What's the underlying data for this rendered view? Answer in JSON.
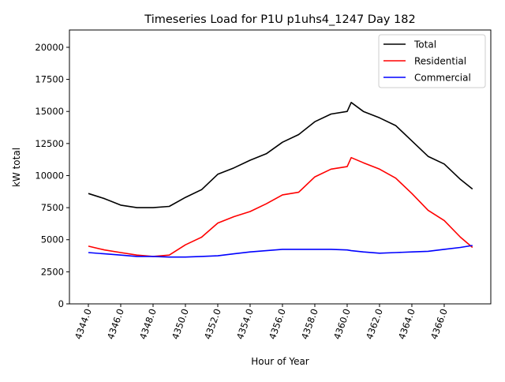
{
  "chart_data": {
    "type": "line",
    "title": "Timeseries Load for P1U p1uhs4_1247  Day 182",
    "xlabel": "Hour of Year",
    "ylabel": "kW total",
    "xlim": [
      4342.83,
      4368.88
    ],
    "ylim": [
      0,
      21350
    ],
    "xticks": [
      4344,
      4346,
      4348,
      4350,
      4352,
      4354,
      4356,
      4358,
      4360,
      4362,
      4364,
      4366
    ],
    "xtick_labels": [
      "4344.0",
      "4346.0",
      "4348.0",
      "4350.0",
      "4352.0",
      "4354.0",
      "4356.0",
      "4358.0",
      "4360.0",
      "4362.0",
      "4364.0",
      "4366.0"
    ],
    "yticks": [
      0,
      2500,
      5000,
      7500,
      10000,
      12500,
      15000,
      17500,
      20000
    ],
    "ytick_labels": [
      "0",
      "2500",
      "5000",
      "7500",
      "10000",
      "12500",
      "15000",
      "17500",
      "20000"
    ],
    "grid": false,
    "legend_position": "top-right",
    "x": [
      4344,
      4345,
      4346,
      4347,
      4348,
      4349,
      4350,
      4351,
      4352,
      4353,
      4354,
      4355,
      4356,
      4357,
      4358,
      4359,
      4360,
      4360.25,
      4361,
      4362,
      4363,
      4364,
      4365,
      4366,
      4367,
      4367.75
    ],
    "series": [
      {
        "name": "Total",
        "color": "#000000",
        "values": [
          8600,
          8200,
          7700,
          7500,
          7500,
          7600,
          8300,
          8900,
          10100,
          10600,
          11200,
          11700,
          12600,
          13200,
          14200,
          14800,
          15000,
          15700,
          15000,
          14500,
          13900,
          12700,
          11500,
          10900,
          9700,
          8950
        ]
      },
      {
        "name": "Residential",
        "color": "#ff0000",
        "values": [
          4500,
          4200,
          4000,
          3800,
          3700,
          3800,
          4600,
          5200,
          6300,
          6800,
          7200,
          7800,
          8500,
          8700,
          9900,
          10500,
          10700,
          11400,
          11000,
          10500,
          9800,
          8600,
          7300,
          6500,
          5200,
          4400
        ]
      },
      {
        "name": "Commercial",
        "color": "#0000ff",
        "values": [
          4000,
          3900,
          3800,
          3700,
          3700,
          3650,
          3650,
          3700,
          3750,
          3900,
          4050,
          4150,
          4250,
          4250,
          4250,
          4250,
          4200,
          4150,
          4050,
          3950,
          4000,
          4050,
          4100,
          4250,
          4400,
          4550
        ]
      }
    ]
  }
}
